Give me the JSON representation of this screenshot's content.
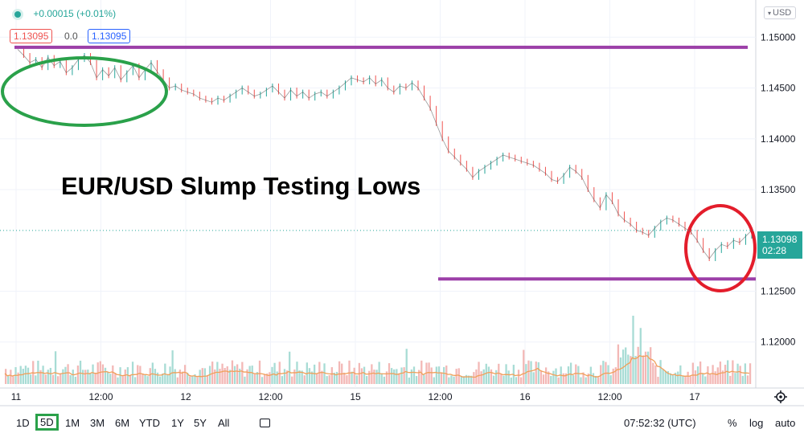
{
  "header": {
    "change_text": "+0.00015 (+0.01%)",
    "bid": "1.13095",
    "spread": "0.0",
    "ask": "1.13095",
    "currency": "USD"
  },
  "annotation_title": "EUR/USD Slump Testing Lows",
  "price_label": {
    "value": "1.13098",
    "countdown": "02:28"
  },
  "timeframes": [
    "1D",
    "5D",
    "1M",
    "3M",
    "6M",
    "YTD",
    "1Y",
    "5Y",
    "All"
  ],
  "selected_timeframe": "5D",
  "clock": "07:52:32 (UTC)",
  "scale_options": {
    "percent": "%",
    "log": "log",
    "auto": "auto"
  },
  "colors": {
    "up": "#26a69a",
    "down": "#ef5350",
    "purple": "#9c3fa8",
    "green_circle": "#2aa14a",
    "red_circle": "#e31d2b"
  },
  "chart_data": {
    "type": "line",
    "x_ticks": [
      "11",
      "12:00",
      "12",
      "12:00",
      "15",
      "12:00",
      "16",
      "12:00",
      "17"
    ],
    "y_ticks": [
      "1.15000",
      "1.14500",
      "1.14000",
      "1.13500",
      "1.12500",
      "1.12000"
    ],
    "ylim": [
      1.1165,
      1.1535
    ],
    "resistance_level": 1.149,
    "support_level": 1.1262,
    "last_price": 1.13098,
    "series": [
      {
        "values": [
          1.1488,
          1.1482,
          1.1475,
          1.1478,
          1.147,
          1.148,
          1.1472,
          1.1476,
          1.1465,
          1.147,
          1.1478,
          1.1482,
          1.1475,
          1.146,
          1.1468,
          1.1462,
          1.147,
          1.1458,
          1.1465,
          1.1472,
          1.146,
          1.1468,
          1.1475,
          1.1466,
          1.1458,
          1.145,
          1.1452,
          1.1448,
          1.1446,
          1.1444,
          1.144,
          1.1438,
          1.1436,
          1.144,
          1.1438,
          1.1442,
          1.1446,
          1.145,
          1.1446,
          1.1442,
          1.1444,
          1.1448,
          1.1452,
          1.1446,
          1.144,
          1.1448,
          1.1442,
          1.1446,
          1.144,
          1.1444,
          1.1446,
          1.1442,
          1.1446,
          1.145,
          1.1455,
          1.146,
          1.1458,
          1.1456,
          1.146,
          1.1454,
          1.1458,
          1.145,
          1.1446,
          1.1452,
          1.145,
          1.1455,
          1.145,
          1.144,
          1.143,
          1.1415,
          1.14,
          1.1388,
          1.1382,
          1.1376,
          1.137,
          1.1362,
          1.1368,
          1.1372,
          1.1376,
          1.138,
          1.1384,
          1.1382,
          1.138,
          1.1378,
          1.1376,
          1.1374,
          1.137,
          1.1366,
          1.136,
          1.1358,
          1.1364,
          1.1372,
          1.1368,
          1.1362,
          1.135,
          1.134,
          1.1332,
          1.1345,
          1.1338,
          1.1326,
          1.132,
          1.1316,
          1.131,
          1.1308,
          1.1305,
          1.1312,
          1.1318,
          1.1322,
          1.132,
          1.1316,
          1.1312,
          1.1308,
          1.13,
          1.129,
          1.1282,
          1.129,
          1.1296,
          1.1294,
          1.13,
          1.1298,
          1.1304,
          1.131
        ]
      }
    ]
  }
}
